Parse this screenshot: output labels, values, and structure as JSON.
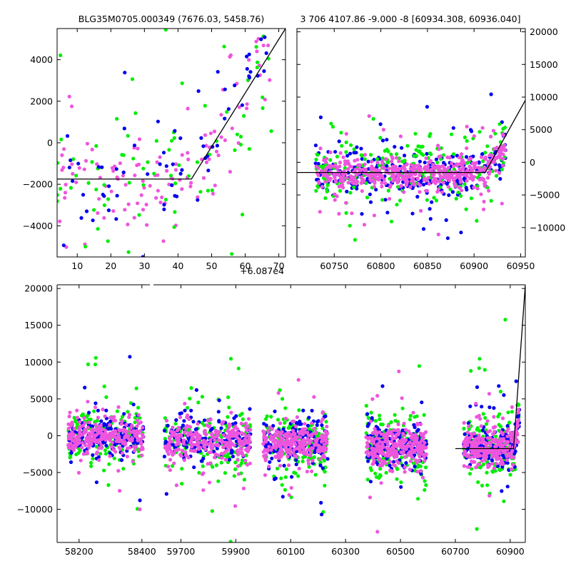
{
  "figure": {
    "title_left": "BLG35M0705.000349 (7676.03, 5458.76)",
    "title_right": "3 706 4107.86 -9.000 -8 [60934.308, 60936.040]",
    "offset_label": "+6.087e4"
  },
  "colors": {
    "blue": "#0000ee",
    "green": "#00ee00",
    "magenta": "#ee55dd",
    "model": "#000000"
  },
  "chart_data": [
    {
      "id": "zoom-recent",
      "type": "scatter",
      "xlim": [
        4,
        72
      ],
      "ylim": [
        -5500,
        5500
      ],
      "x_offset": 60870,
      "xticks": [
        10,
        20,
        30,
        40,
        50,
        60,
        70
      ],
      "yticks": [
        -4000,
        -2000,
        0,
        2000,
        4000
      ],
      "yaxis_side": "left",
      "model_line": [
        [
          4,
          -1750
        ],
        [
          44,
          -1750
        ],
        [
          72,
          5500
        ]
      ],
      "series": [
        {
          "color": "magenta",
          "n": 130,
          "seed": 11,
          "xmin": 4,
          "xmax": 68,
          "base": -1750,
          "break_x": 44,
          "slope": 270,
          "sigma": 1300
        },
        {
          "color": "green",
          "n": 80,
          "seed": 12,
          "xmin": 4,
          "xmax": 68,
          "base": -1750,
          "break_x": 44,
          "slope": 270,
          "sigma": 1700
        },
        {
          "color": "blue",
          "n": 70,
          "seed": 13,
          "xmin": 4,
          "xmax": 68,
          "base": -1750,
          "break_x": 44,
          "slope": 270,
          "sigma": 1500
        }
      ]
    },
    {
      "id": "season-2025",
      "type": "scatter",
      "xlim": [
        60710,
        60955
      ],
      "ylim": [
        -14500,
        20500
      ],
      "xticks": [
        60750,
        60800,
        60850,
        60900,
        60950
      ],
      "yticks": [
        -10000,
        -5000,
        0,
        5000,
        10000,
        15000,
        20000
      ],
      "yaxis_side": "right",
      "model_line": [
        [
          60710,
          -1550
        ],
        [
          60730,
          -1550
        ],
        [
          60912,
          -1550
        ],
        [
          60955,
          9500
        ]
      ],
      "series": [
        {
          "color": "blue",
          "n": 300,
          "seed": 21,
          "xmin": 60730,
          "xmax": 60934,
          "base": -1600,
          "break_x": 60912,
          "slope": 200,
          "sigma": 1600
        },
        {
          "color": "green",
          "n": 220,
          "seed": 22,
          "xmin": 60730,
          "xmax": 60934,
          "base": -1600,
          "break_x": 60912,
          "slope": 200,
          "sigma": 2200
        },
        {
          "color": "magenta",
          "n": 500,
          "seed": 23,
          "xmin": 60730,
          "xmax": 60934,
          "base": -1600,
          "break_x": 60912,
          "slope": 200,
          "sigma": 1100
        }
      ]
    },
    {
      "id": "full-lightcurve",
      "type": "scatter",
      "ylim": [
        -14500,
        20500
      ],
      "yticks": [
        -10000,
        -5000,
        0,
        5000,
        10000,
        15000,
        20000
      ],
      "segments": [
        {
          "xlim": [
            58130,
            58430
          ],
          "xticks": [
            58200,
            58400
          ]
        },
        {
          "xlim": [
            59600,
            59975,
            60730,
            60955
          ],
          "xticks": [
            59700,
            59900,
            60100,
            60300,
            60500,
            60700,
            60900
          ],
          "note": "broken axis shown as continuous scale"
        }
      ],
      "seasons": [
        {
          "xmin": 58165,
          "xmax": 58405,
          "base": -200,
          "sigma": 1300
        },
        {
          "xmin": 59640,
          "xmax": 59955,
          "base": -700,
          "sigma": 1400
        },
        {
          "xmin": 60000,
          "xmax": 60235,
          "base": -900,
          "sigma": 1400
        },
        {
          "xmin": 60375,
          "xmax": 60595,
          "base": -1400,
          "sigma": 1400
        },
        {
          "xmin": 60730,
          "xmax": 60934,
          "base": -1600,
          "sigma": 1300
        }
      ],
      "model_line": [
        [
          60700,
          -1750
        ],
        [
          60912,
          -1750
        ],
        [
          60955,
          20500
        ]
      ]
    }
  ]
}
